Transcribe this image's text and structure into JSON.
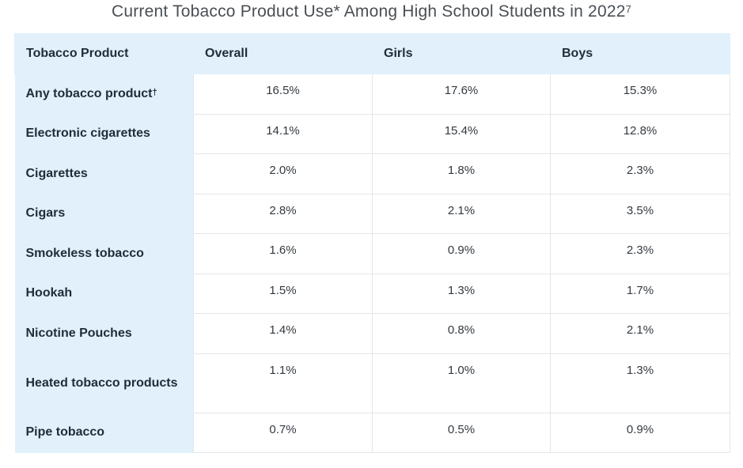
{
  "title": {
    "text": "Current Tobacco Product Use* Among High School Students in 2022",
    "footnote_ref": "7"
  },
  "table": {
    "headers": [
      "Tobacco Product",
      "Overall",
      "Girls",
      "Boys"
    ],
    "rows": [
      {
        "product": "Any tobacco product",
        "mark": "†",
        "overall": "16.5%",
        "girls": "17.6%",
        "boys": "15.3%"
      },
      {
        "product": "Electronic cigarettes",
        "mark": "",
        "overall": "14.1%",
        "girls": "15.4%",
        "boys": "12.8%"
      },
      {
        "product": "Cigarettes",
        "mark": "",
        "overall": "2.0%",
        "girls": "1.8%",
        "boys": "2.3%"
      },
      {
        "product": "Cigars",
        "mark": "",
        "overall": "2.8%",
        "girls": "2.1%",
        "boys": "3.5%"
      },
      {
        "product": "Smokeless tobacco",
        "mark": "",
        "overall": "1.6%",
        "girls": "0.9%",
        "boys": "2.3%"
      },
      {
        "product": "Hookah",
        "mark": "",
        "overall": "1.5%",
        "girls": "1.3%",
        "boys": "1.7%"
      },
      {
        "product": "Nicotine Pouches",
        "mark": "",
        "overall": "1.4%",
        "girls": "0.8%",
        "boys": "2.1%"
      },
      {
        "product": "Heated tobacco products",
        "mark": "",
        "overall": "1.1%",
        "girls": "1.0%",
        "boys": "1.3%"
      },
      {
        "product": "Pipe tobacco",
        "mark": "",
        "overall": "0.7%",
        "girls": "0.5%",
        "boys": "0.9%"
      }
    ]
  },
  "colors": {
    "header_bg": "#e1f0fb",
    "grid_line": "#e3e6e9",
    "title_text": "#4a4f55"
  }
}
